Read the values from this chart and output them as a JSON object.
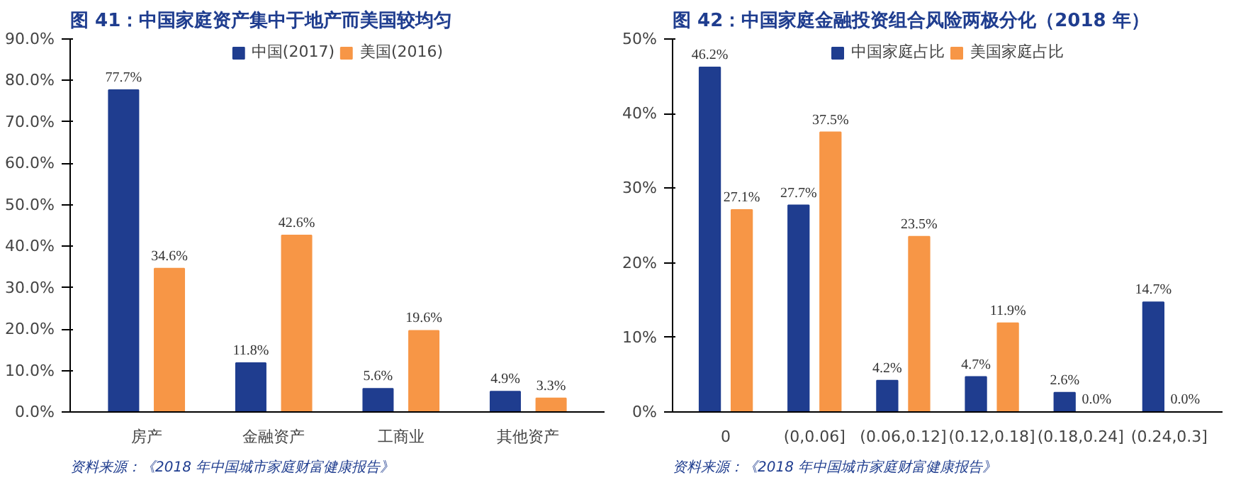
{
  "chart_data": [
    {
      "type": "bar",
      "title": "图 41：中国家庭资产集中于地产而美国较均匀",
      "categories": [
        "房产",
        "金融资产",
        "工商业",
        "其他资产"
      ],
      "series": [
        {
          "name": "中国(2017)",
          "color": "#1f3d8f",
          "values": [
            77.7,
            11.8,
            5.6,
            4.9
          ],
          "value_labels": [
            "77.7%",
            "11.8%",
            "5.6%",
            "4.9%"
          ]
        },
        {
          "name": "美国(2016)",
          "color": "#f79646",
          "values": [
            34.6,
            42.6,
            19.6,
            3.3
          ],
          "value_labels": [
            "34.6%",
            "42.6%",
            "19.6%",
            "3.3%"
          ]
        }
      ],
      "ylim": [
        0,
        90
      ],
      "yticks": [
        {
          "value": 0,
          "label": "0.0%"
        },
        {
          "value": 10,
          "label": "10.0%"
        },
        {
          "value": 20,
          "label": "20.0%"
        },
        {
          "value": 30,
          "label": "30.0%"
        },
        {
          "value": 40,
          "label": "40.0%"
        },
        {
          "value": 50,
          "label": "50.0%"
        },
        {
          "value": 60,
          "label": "60.0%"
        },
        {
          "value": 70,
          "label": "70.0%"
        },
        {
          "value": 80,
          "label": "80.0%"
        },
        {
          "value": 90,
          "label": "90.0%"
        }
      ],
      "grid": false,
      "legend": "top",
      "annotations": [
        "资料来源：《2018 年中国城市家庭财富健康报告》"
      ]
    },
    {
      "type": "bar",
      "title": "图 42：中国家庭金融投资组合风险两极分化（2018 年）",
      "categories": [
        "0",
        "(0,0.06]",
        "(0.06,0.12]",
        "(0.12,0.18]",
        "(0.18,0.24]",
        "(0.24,0.3]"
      ],
      "series": [
        {
          "name": "中国家庭占比",
          "color": "#1f3d8f",
          "values": [
            46.2,
            27.7,
            4.2,
            4.7,
            2.6,
            14.7
          ],
          "value_labels": [
            "46.2%",
            "27.7%",
            "4.2%",
            "4.7%",
            "2.6%",
            "14.7%"
          ]
        },
        {
          "name": "美国家庭占比",
          "color": "#f79646",
          "values": [
            27.1,
            37.5,
            23.5,
            11.9,
            0.0,
            0.0
          ],
          "value_labels": [
            "27.1%",
            "37.5%",
            "23.5%",
            "11.9%",
            "0.0%",
            "0.0%"
          ]
        }
      ],
      "ylim": [
        0,
        50
      ],
      "yticks": [
        {
          "value": 0,
          "label": "0%"
        },
        {
          "value": 10,
          "label": "10%"
        },
        {
          "value": 20,
          "label": "20%"
        },
        {
          "value": 30,
          "label": "30%"
        },
        {
          "value": 40,
          "label": "40%"
        },
        {
          "value": 50,
          "label": "50%"
        }
      ],
      "grid": false,
      "legend": "top",
      "annotations": [
        "资料来源：《2018 年中国城市家庭财富健康报告》"
      ]
    }
  ]
}
